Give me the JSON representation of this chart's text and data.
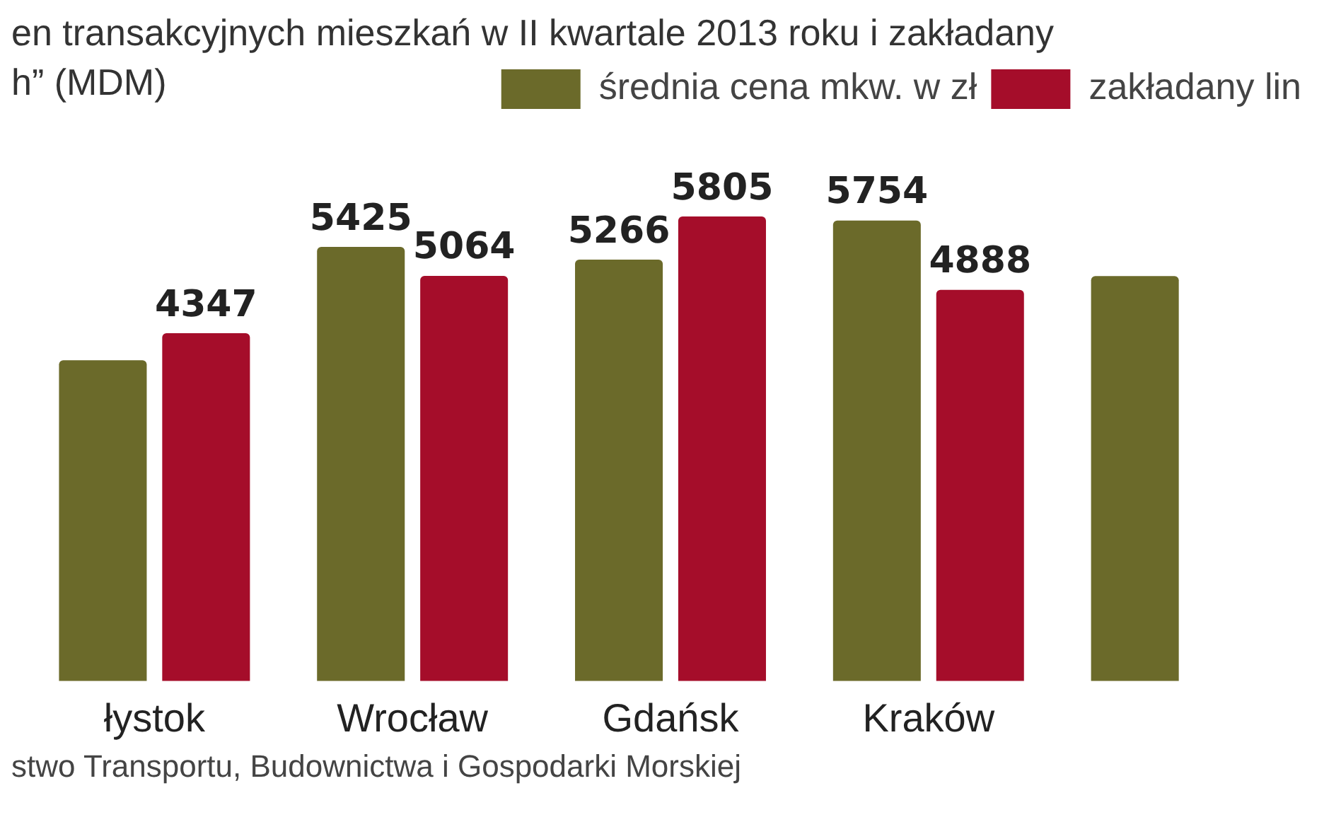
{
  "chart_data": {
    "type": "bar",
    "title": "en transakcyjnych mieszkań w II kwartale 2013 roku i zakładany",
    "subtitle": "h” (MDM)",
    "categories": [
      "łystok",
      "Wrocław",
      "Gdańsk",
      "Kraków",
      null
    ],
    "series": [
      {
        "name": "średnia cena mkw. w zł",
        "color": "#6b6a2a",
        "values": [
          4010,
          5425,
          5266,
          5754,
          5060
        ],
        "value_labels": [
          null,
          "5425",
          "5266",
          "5754",
          null
        ]
      },
      {
        "name": "zakładany lin",
        "color": "#a50d2a",
        "values": [
          4347,
          5064,
          5805,
          4888,
          null
        ],
        "value_labels": [
          "4347",
          "5064",
          "5805",
          "4888",
          null
        ]
      }
    ],
    "legend": "top right",
    "annotations": [
      "stwo Transportu, Budownictwa i Gospodarki Morskiej"
    ]
  }
}
